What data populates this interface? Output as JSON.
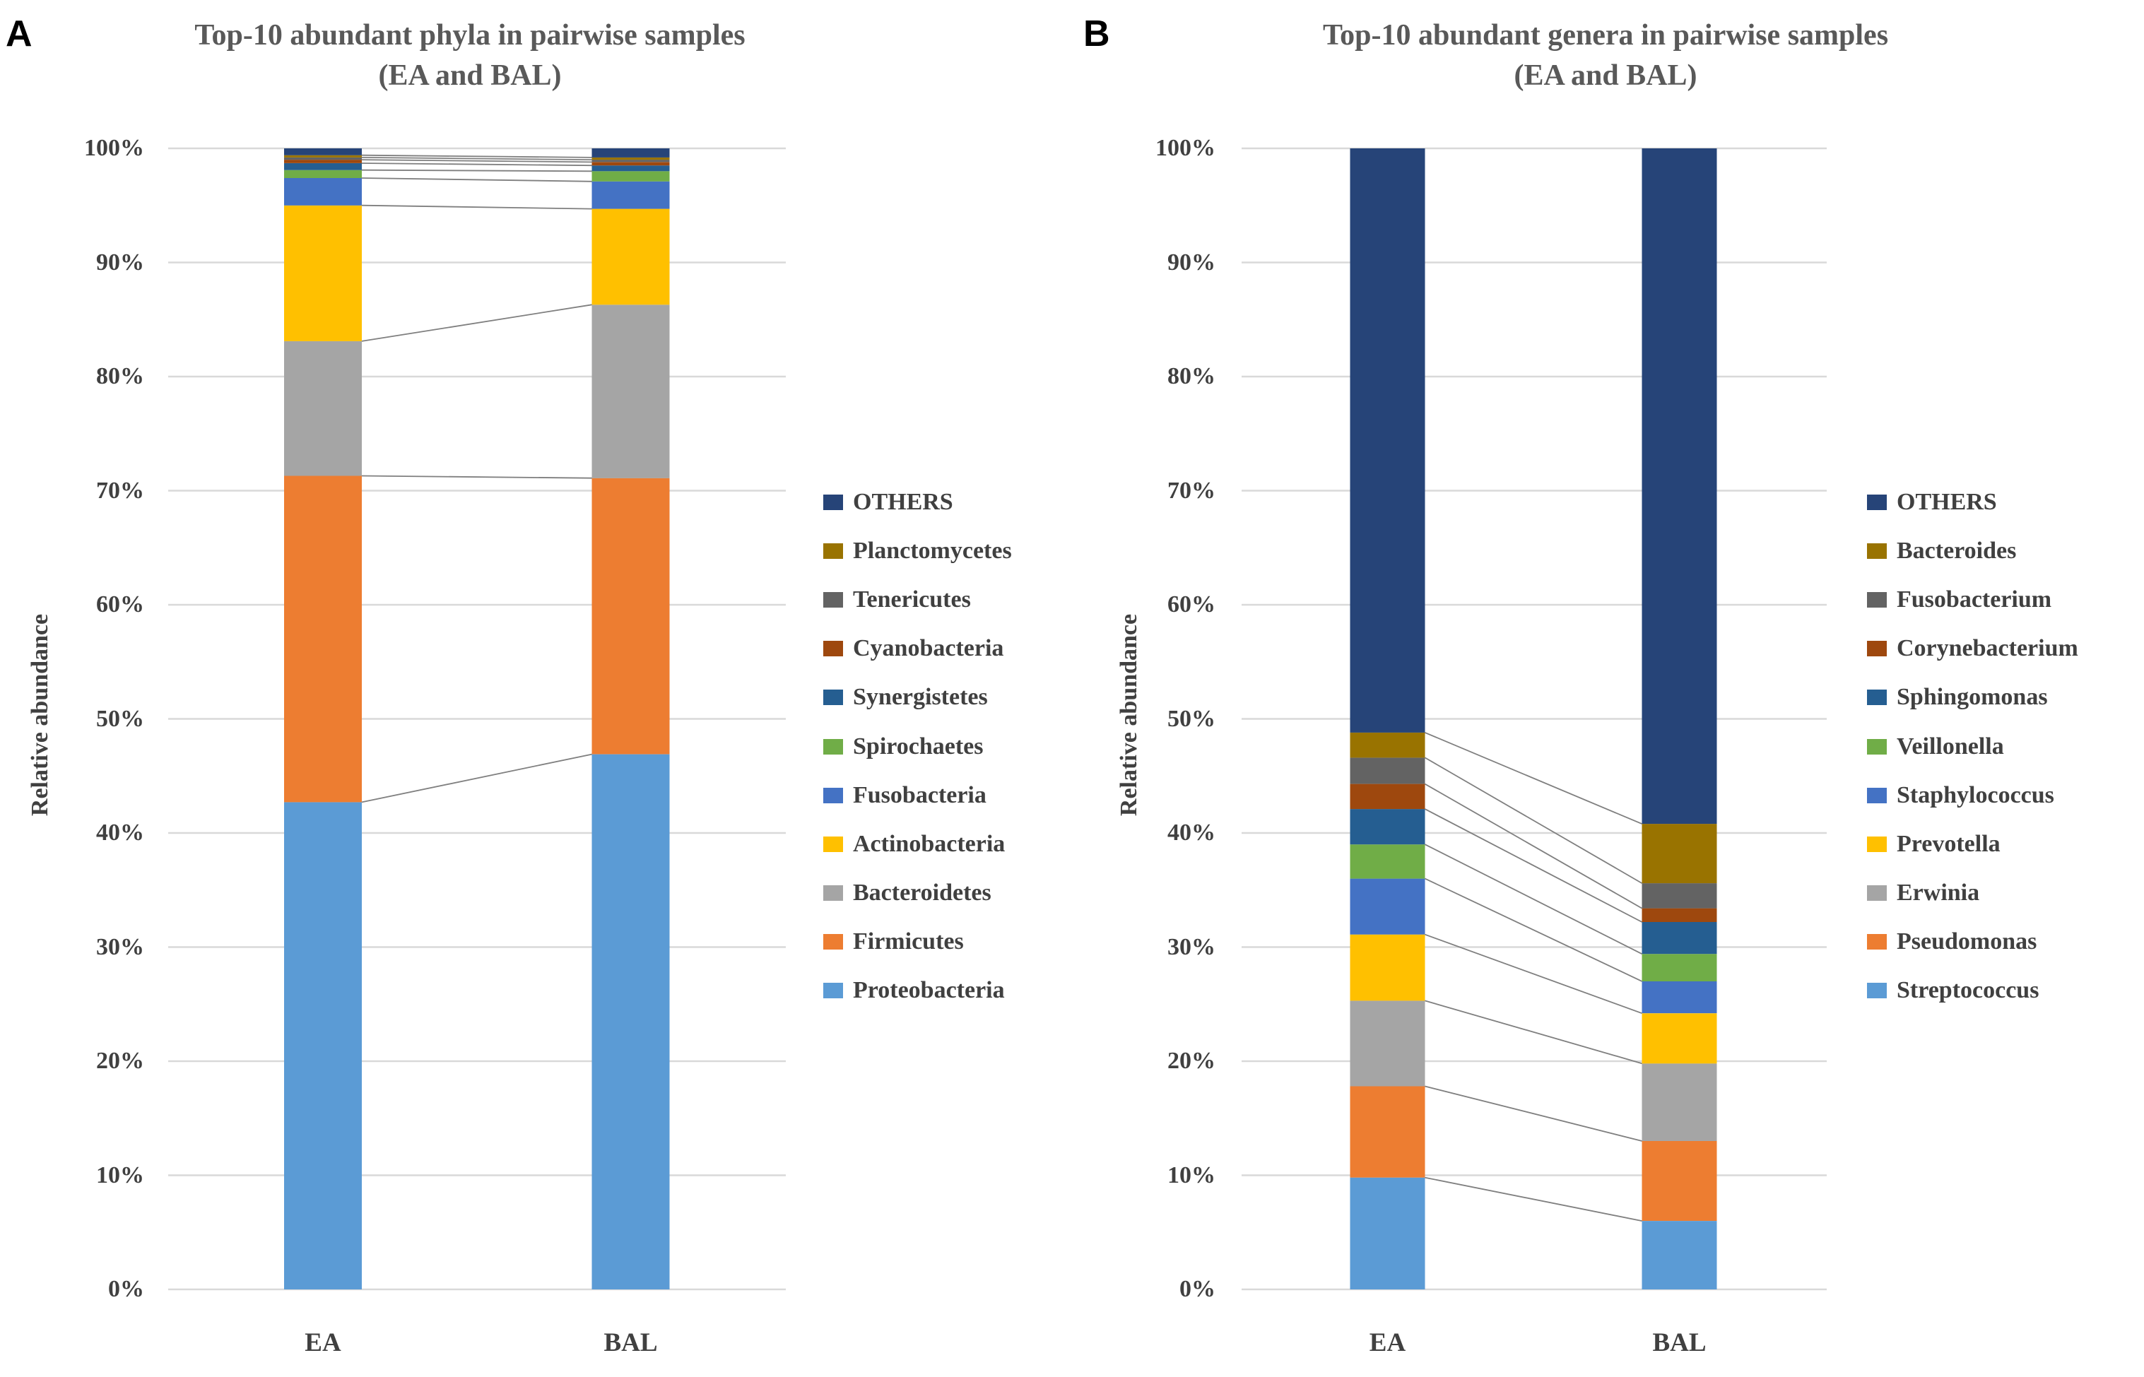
{
  "figure": {
    "panels": [
      {
        "letter": "A",
        "title_line1": "Top-10 abundant phyla in pairwise samples",
        "title_line2": "(EA and BAL)",
        "y_axis_title": "Relative abundance"
      },
      {
        "letter": "B",
        "title_line1": "Top-10 abundant genera in pairwise samples",
        "title_line2": "(EA and BAL)",
        "y_axis_title": "Relative abundance"
      }
    ],
    "colors": {
      "grid_line": "#D9D9D9",
      "connector_line": "#7F7F7F",
      "title_text": "#595959",
      "axis_text": "#404040",
      "background": "#FFFFFF"
    }
  },
  "chart_data": [
    {
      "type": "bar",
      "subtype": "stacked-100-percent",
      "title": "Top-10 abundant phyla in pairwise samples (EA and BAL)",
      "xlabel": "",
      "ylabel": "Relative abundance",
      "ylim": [
        0,
        100
      ],
      "grid": true,
      "legend_position": "right",
      "y_ticks": [
        "100%",
        "90%",
        "80%",
        "70%",
        "60%",
        "50%",
        "40%",
        "30%",
        "20%",
        "10%",
        "0%"
      ],
      "categories": [
        "EA",
        "BAL"
      ],
      "series_bottom_to_top": [
        {
          "name": "Proteobacteria",
          "color": "#5B9BD5",
          "values": [
            42.7,
            46.9
          ]
        },
        {
          "name": "Firmicutes",
          "color": "#ED7D31",
          "values": [
            28.6,
            24.2
          ]
        },
        {
          "name": "Bacteroidetes",
          "color": "#A5A5A5",
          "values": [
            11.8,
            15.2
          ]
        },
        {
          "name": "Actinobacteria",
          "color": "#FFC000",
          "values": [
            11.9,
            8.4
          ]
        },
        {
          "name": "Fusobacteria",
          "color": "#4472C4",
          "values": [
            2.4,
            2.4
          ]
        },
        {
          "name": "Spirochaetes",
          "color": "#70AD47",
          "values": [
            0.7,
            0.9
          ]
        },
        {
          "name": "Synergistetes",
          "color": "#255E91",
          "values": [
            0.6,
            0.5
          ]
        },
        {
          "name": "Cyanobacteria",
          "color": "#9E480E",
          "values": [
            0.3,
            0.3
          ]
        },
        {
          "name": "Tenericutes",
          "color": "#636363",
          "values": [
            0.2,
            0.2
          ]
        },
        {
          "name": "Planctomycetes",
          "color": "#997300",
          "values": [
            0.2,
            0.2
          ]
        },
        {
          "name": "OTHERS",
          "color": "#264478",
          "values": [
            0.6,
            0.8
          ]
        }
      ]
    },
    {
      "type": "bar",
      "subtype": "stacked-100-percent",
      "title": "Top-10 abundant genera in pairwise samples (EA and BAL)",
      "xlabel": "",
      "ylabel": "Relative abundance",
      "ylim": [
        0,
        100
      ],
      "grid": true,
      "legend_position": "right",
      "y_ticks": [
        "100%",
        "90%",
        "80%",
        "70%",
        "60%",
        "50%",
        "40%",
        "30%",
        "20%",
        "10%",
        "0%"
      ],
      "categories": [
        "EA",
        "BAL"
      ],
      "series_bottom_to_top": [
        {
          "name": "Streptococcus",
          "color": "#5B9BD5",
          "values": [
            9.8,
            6.0
          ]
        },
        {
          "name": "Pseudomonas",
          "color": "#ED7D31",
          "values": [
            8.0,
            7.0
          ]
        },
        {
          "name": "Erwinia",
          "color": "#A5A5A5",
          "values": [
            7.5,
            6.8
          ]
        },
        {
          "name": "Prevotella",
          "color": "#FFC000",
          "values": [
            5.8,
            4.4
          ]
        },
        {
          "name": "Staphylococcus",
          "color": "#4472C4",
          "values": [
            4.9,
            2.8
          ]
        },
        {
          "name": "Veillonella",
          "color": "#70AD47",
          "values": [
            3.0,
            2.4
          ]
        },
        {
          "name": "Sphingomonas",
          "color": "#255E91",
          "values": [
            3.1,
            2.8
          ]
        },
        {
          "name": "Corynebacterium",
          "color": "#9E480E",
          "values": [
            2.2,
            1.2
          ]
        },
        {
          "name": "Fusobacterium",
          "color": "#636363",
          "values": [
            2.3,
            2.2
          ]
        },
        {
          "name": "Bacteroides",
          "color": "#997300",
          "values": [
            2.2,
            5.2
          ]
        },
        {
          "name": "OTHERS",
          "color": "#264478",
          "values": [
            51.2,
            59.2
          ]
        }
      ]
    }
  ]
}
